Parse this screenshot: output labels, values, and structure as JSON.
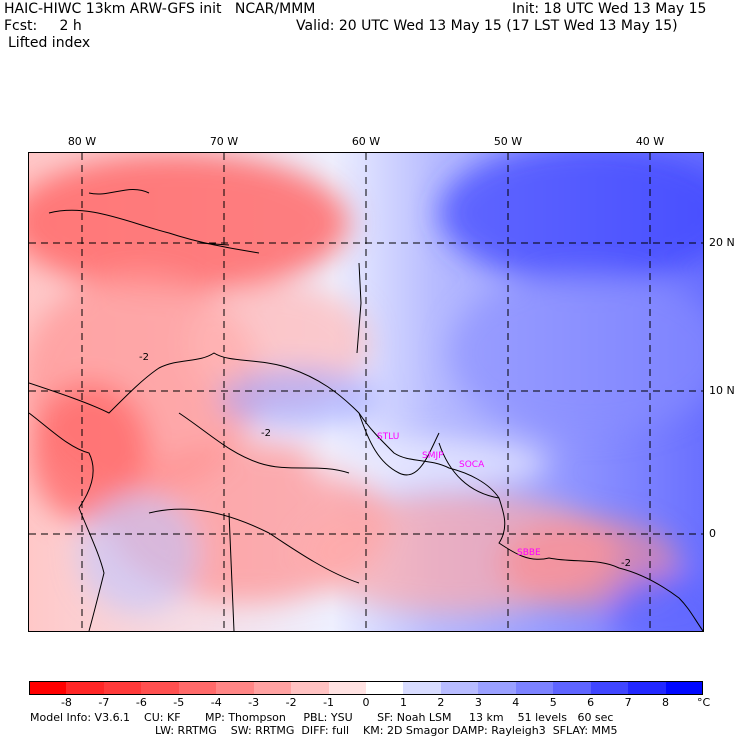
{
  "header": {
    "title": "HAIC-HIWC 13km ARW-GFS init   NCAR/MMM",
    "init": "Init: 18 UTC Wed 13 May 15",
    "forecast": "Fcst:     2 h",
    "valid": "Valid: 20 UTC Wed 13 May 15 (17 LST Wed 13 May 15)",
    "field": "Lifted index"
  },
  "map": {
    "lon_labels": [
      "80 W",
      "70 W",
      "60 W",
      "50 W",
      "40 W"
    ],
    "lat_labels": [
      "20 N",
      "10 N",
      "0"
    ],
    "stations": [
      "STLU",
      "SMJP",
      "SOCA",
      "SBBE"
    ],
    "contour_labels": [
      "-2",
      "-2",
      "-2"
    ]
  },
  "colorbar": {
    "labels": [
      "-8",
      "-7",
      "-6",
      "-5",
      "-4",
      "-3",
      "-2",
      "-1",
      "0",
      "1",
      "2",
      "3",
      "4",
      "5",
      "6",
      "7",
      "8"
    ],
    "unit": "°C",
    "colors": [
      "#ff0000",
      "#ff2626",
      "#ff3a3a",
      "#ff5050",
      "#ff6a6a",
      "#ff8686",
      "#ffa2a2",
      "#ffc2c2",
      "#ffe2e2",
      "#ffffff",
      "#d8dcff",
      "#b8bcff",
      "#9aa0ff",
      "#7c82ff",
      "#5e64ff",
      "#4046ff",
      "#2228ff",
      "#0008ff"
    ]
  },
  "footer": {
    "line1": "Model Info: V3.6.1    CU: KF       MP: Thompson     PBL: YSU       SF: Noah LSM     13 km    51 levels   60 sec",
    "line2": "LW: RRTMG    SW: RRTMG  DIFF: full    KM: 2D Smagor DAMP: Rayleigh3  SFLAY: MM5"
  }
}
